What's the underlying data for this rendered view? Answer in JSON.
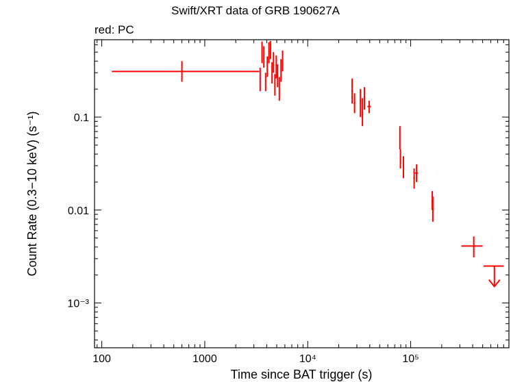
{
  "chart_data": {
    "type": "scatter",
    "title": "Swift/XRT data of GRB 190627A",
    "subtitle": "red: PC",
    "xlabel": "Time since BAT trigger (s)",
    "ylabel": "Count Rate (0.3−10 keV) (s⁻¹)",
    "xscale": "log",
    "yscale": "log",
    "xlim": [
      85,
      900000
    ],
    "ylim": [
      0.00033,
      0.68
    ],
    "x_ticks": [
      {
        "value": 100,
        "label": "100"
      },
      {
        "value": 1000,
        "label": "1000"
      },
      {
        "value": 10000,
        "label": "10⁴"
      },
      {
        "value": 100000,
        "label": "10⁵"
      }
    ],
    "y_ticks": [
      {
        "value": 0.001,
        "label": "10⁻³"
      },
      {
        "value": 0.01,
        "label": "0.01"
      },
      {
        "value": 0.1,
        "label": "0.1"
      }
    ],
    "series": [
      {
        "name": "PC",
        "color": "#ff0000",
        "points": [
          {
            "x": 600,
            "xlo": 125,
            "xhi": 3380,
            "y": 0.31,
            "ylo": 0.24,
            "yhi": 0.4
          },
          {
            "x": 3450,
            "xlo": 3400,
            "xhi": 3500,
            "y": 0.26,
            "ylo": 0.19,
            "yhi": 0.34
          },
          {
            "x": 3600,
            "xlo": 3560,
            "xhi": 3640,
            "y": 0.5,
            "ylo": 0.38,
            "yhi": 0.65
          },
          {
            "x": 3750,
            "xlo": 3710,
            "xhi": 3790,
            "y": 0.45,
            "ylo": 0.34,
            "yhi": 0.58
          },
          {
            "x": 3900,
            "xlo": 3860,
            "xhi": 3940,
            "y": 0.24,
            "ylo": 0.19,
            "yhi": 0.3
          },
          {
            "x": 4050,
            "xlo": 4010,
            "xhi": 4090,
            "y": 0.35,
            "ylo": 0.27,
            "yhi": 0.45
          },
          {
            "x": 4200,
            "xlo": 4160,
            "xhi": 4240,
            "y": 0.5,
            "ylo": 0.38,
            "yhi": 0.64
          },
          {
            "x": 4350,
            "xlo": 4310,
            "xhi": 4390,
            "y": 0.55,
            "ylo": 0.42,
            "yhi": 0.66
          },
          {
            "x": 4500,
            "xlo": 4460,
            "xhi": 4540,
            "y": 0.3,
            "ylo": 0.23,
            "yhi": 0.39
          },
          {
            "x": 4650,
            "xlo": 4610,
            "xhi": 4690,
            "y": 0.4,
            "ylo": 0.3,
            "yhi": 0.5
          },
          {
            "x": 4800,
            "xlo": 4760,
            "xhi": 4840,
            "y": 0.22,
            "ylo": 0.17,
            "yhi": 0.29
          },
          {
            "x": 4950,
            "xlo": 4910,
            "xhi": 4990,
            "y": 0.35,
            "ylo": 0.26,
            "yhi": 0.46
          },
          {
            "x": 5100,
            "xlo": 5060,
            "xhi": 5140,
            "y": 0.28,
            "ylo": 0.21,
            "yhi": 0.37
          },
          {
            "x": 5300,
            "xlo": 5250,
            "xhi": 5350,
            "y": 0.2,
            "ylo": 0.15,
            "yhi": 0.27
          },
          {
            "x": 5500,
            "xlo": 5450,
            "xhi": 5550,
            "y": 0.32,
            "ylo": 0.24,
            "yhi": 0.42
          },
          {
            "x": 5700,
            "xlo": 5650,
            "xhi": 5750,
            "y": 0.4,
            "ylo": 0.31,
            "yhi": 0.52
          },
          {
            "x": 27000,
            "xlo": 26500,
            "xhi": 27500,
            "y": 0.19,
            "ylo": 0.14,
            "yhi": 0.26
          },
          {
            "x": 28500,
            "xlo": 28000,
            "xhi": 29000,
            "y": 0.14,
            "ylo": 0.11,
            "yhi": 0.18
          },
          {
            "x": 32500,
            "xlo": 32000,
            "xhi": 33000,
            "y": 0.15,
            "ylo": 0.1,
            "yhi": 0.2
          },
          {
            "x": 34000,
            "xlo": 33500,
            "xhi": 34500,
            "y": 0.11,
            "ylo": 0.08,
            "yhi": 0.16
          },
          {
            "x": 35500,
            "xlo": 35000,
            "xhi": 36000,
            "y": 0.16,
            "ylo": 0.12,
            "yhi": 0.21
          },
          {
            "x": 39500,
            "xlo": 38000,
            "xhi": 41000,
            "y": 0.13,
            "ylo": 0.11,
            "yhi": 0.15
          },
          {
            "x": 78500,
            "xlo": 78000,
            "xhi": 79000,
            "y": 0.06,
            "ylo": 0.045,
            "yhi": 0.08
          },
          {
            "x": 79500,
            "xlo": 79000,
            "xhi": 80000,
            "y": 0.035,
            "ylo": 0.028,
            "yhi": 0.045
          },
          {
            "x": 85000,
            "xlo": 84000,
            "xhi": 86000,
            "y": 0.03,
            "ylo": 0.022,
            "yhi": 0.038
          },
          {
            "x": 108000,
            "xlo": 106000,
            "xhi": 110000,
            "y": 0.022,
            "ylo": 0.017,
            "yhi": 0.028
          },
          {
            "x": 114000,
            "xlo": 110000,
            "xhi": 118000,
            "y": 0.025,
            "ylo": 0.02,
            "yhi": 0.031
          },
          {
            "x": 162000,
            "xlo": 159000,
            "xhi": 165000,
            "y": 0.0125,
            "ylo": 0.01,
            "yhi": 0.016
          },
          {
            "x": 164000,
            "xlo": 161000,
            "xhi": 167000,
            "y": 0.0105,
            "ylo": 0.0075,
            "yhi": 0.014
          },
          {
            "x": 410000,
            "xlo": 310000,
            "xhi": 500000,
            "y": 0.0041,
            "ylo": 0.0031,
            "yhi": 0.0052
          }
        ],
        "upper_limits": [
          {
            "x": 650000,
            "xlo": 510000,
            "xhi": 800000,
            "y": 0.0025
          }
        ]
      }
    ]
  }
}
